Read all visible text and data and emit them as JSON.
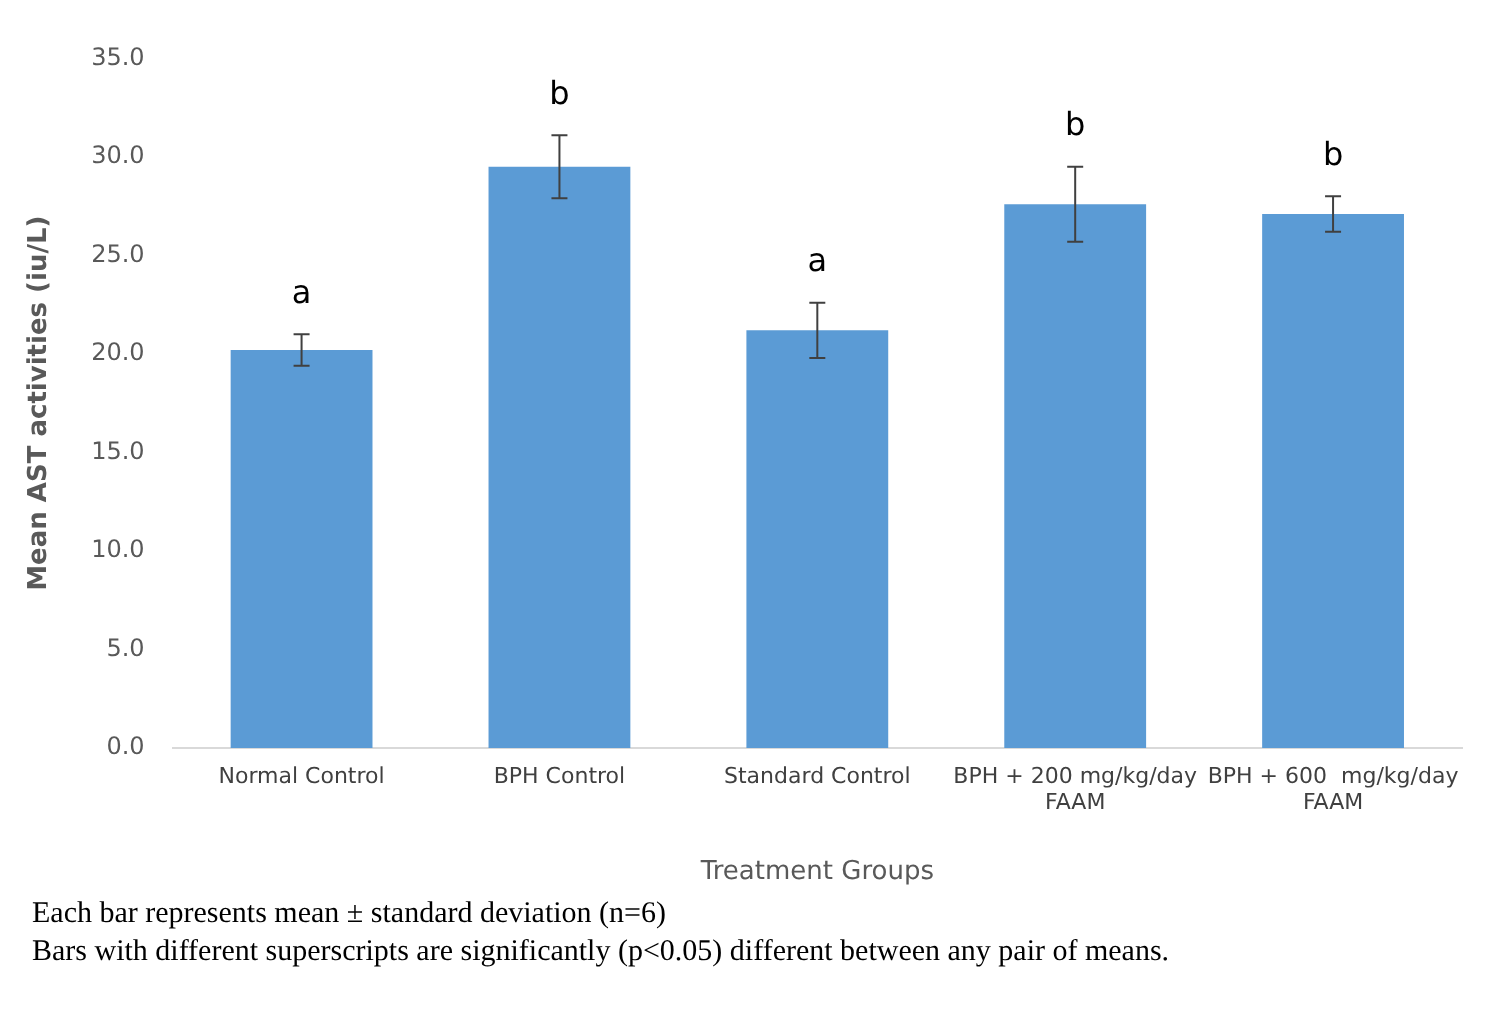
{
  "chart_data": {
    "type": "bar",
    "xlabel": "Treatment Groups",
    "ylabel": "Mean AST activities (iu/L)",
    "categories": [
      "Normal Control",
      "BPH Control",
      "Standard Control",
      "BPH + 200 mg/kg/day FAAM",
      "BPH + 600  mg/kg/day FAAM"
    ],
    "values": [
      20.2,
      29.5,
      21.2,
      27.6,
      27.1
    ],
    "errors": [
      0.8,
      1.6,
      1.4,
      1.9,
      0.9
    ],
    "color": "#5b9bd5",
    "ylim": [
      0,
      35
    ],
    "yticks": [
      {
        "value": 0,
        "label": "0.0"
      },
      {
        "value": 5,
        "label": "5.0"
      },
      {
        "value": 10,
        "label": "10.0"
      },
      {
        "value": 15,
        "label": "15.0"
      },
      {
        "value": 20,
        "label": "20.0"
      },
      {
        "value": 25,
        "label": "25.0"
      },
      {
        "value": 30,
        "label": "30.0"
      },
      {
        "value": 35,
        "label": "35.0"
      }
    ],
    "grid": false,
    "legend": false,
    "annotations": [
      {
        "text": "a",
        "x": "Normal Control",
        "y": 21.0
      },
      {
        "text": "b",
        "x": "BPH Control",
        "y": 31.1
      },
      {
        "text": "a",
        "x": "Standard Control",
        "y": 22.6
      },
      {
        "text": "b",
        "x": "BPH + 200 mg/kg/day FAAM",
        "y": 29.5
      },
      {
        "text": "b",
        "x": "BPH + 600  mg/kg/day FAAM",
        "y": 28.0
      },
      "Each bar represents mean ± standard deviation (n=6)",
      "Bars with different superscripts are significantly (p<0.05) different between any pair of means."
    ]
  }
}
